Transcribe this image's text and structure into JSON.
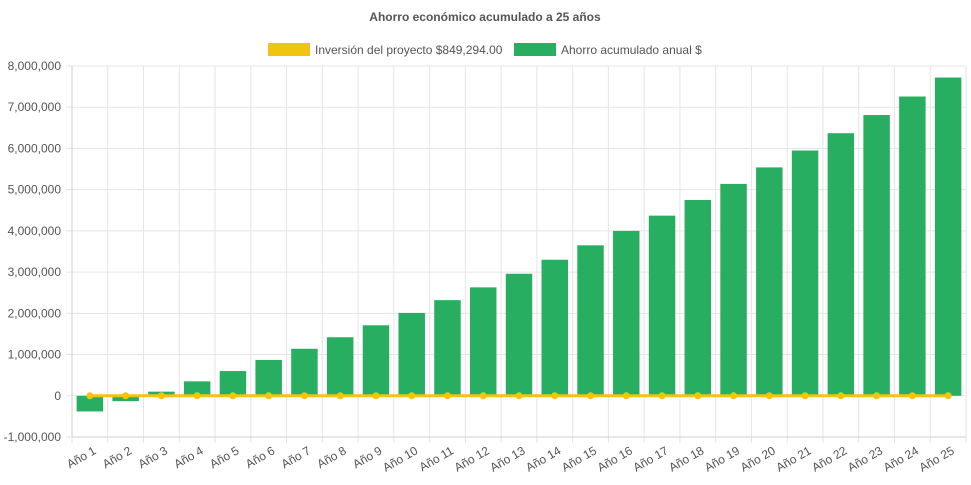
{
  "chart_data": {
    "type": "bar",
    "title": "Ahorro económico acumulado a 25 años",
    "categories": [
      "Año 1",
      "Año 2",
      "Año 3",
      "Año 4",
      "Año 5",
      "Año 6",
      "Año 7",
      "Año 8",
      "Año 9",
      "Año 10",
      "Año 11",
      "Año 12",
      "Año 13",
      "Año 14",
      "Año 15",
      "Año 16",
      "Año 17",
      "Año 18",
      "Año 19",
      "Año 20",
      "Año 21",
      "Año 22",
      "Año 23",
      "Año 24",
      "Año 25"
    ],
    "series": [
      {
        "name": "Inversión del proyecto $849,294.00",
        "type": "line",
        "color": "#f1c40f",
        "values": [
          0,
          0,
          0,
          0,
          0,
          0,
          0,
          0,
          0,
          0,
          0,
          0,
          0,
          0,
          0,
          0,
          0,
          0,
          0,
          0,
          0,
          0,
          0,
          0,
          0
        ]
      },
      {
        "name": "Ahorro acumulado anual $",
        "type": "bar",
        "color": "#27ae60",
        "values": [
          -380000,
          -130000,
          100000,
          350000,
          600000,
          870000,
          1140000,
          1420000,
          1710000,
          2010000,
          2320000,
          2630000,
          2960000,
          3300000,
          3650000,
          4000000,
          4370000,
          4750000,
          5140000,
          5540000,
          5950000,
          6370000,
          6810000,
          7260000,
          7720000
        ]
      }
    ],
    "y_ticks": [
      "8,000,000",
      "7,000,000",
      "6,000,000",
      "5,000,000",
      "4,000,000",
      "3,000,000",
      "2,000,000",
      "1,000,000",
      "0",
      "-1,000,000"
    ],
    "ylim": [
      -1000000,
      8000000
    ],
    "grid": true,
    "legend_position": "top"
  }
}
